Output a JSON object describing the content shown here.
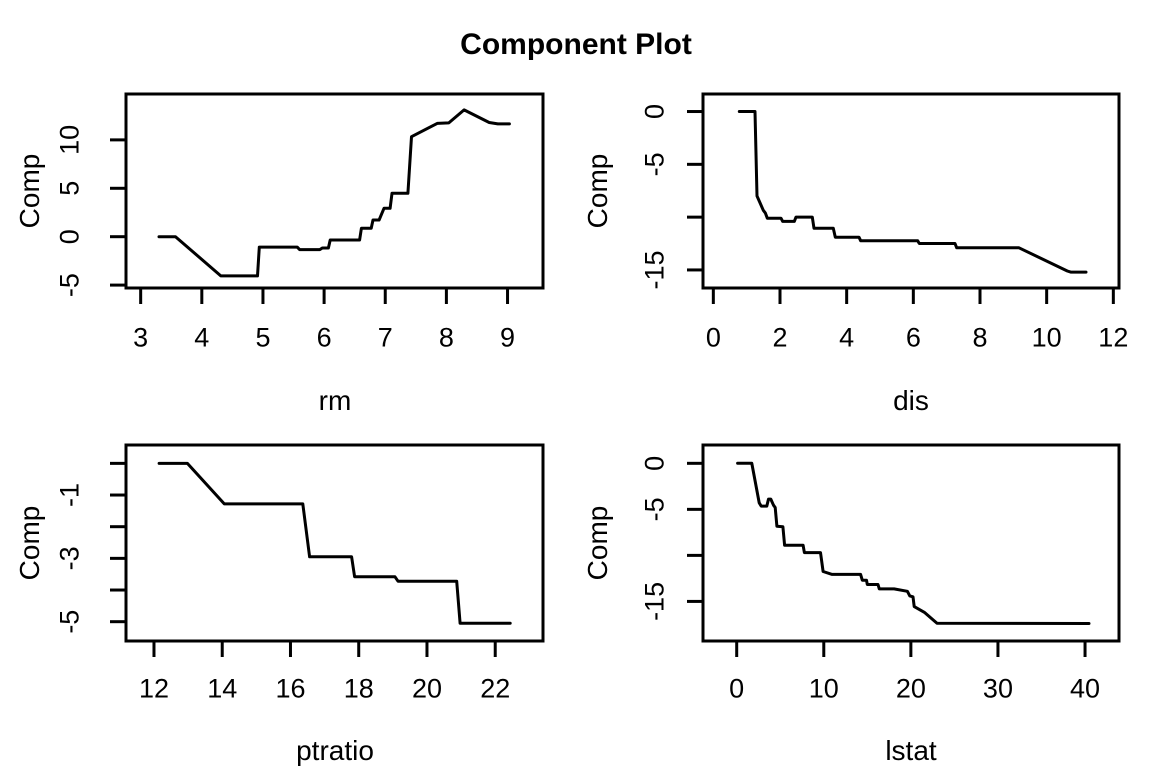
{
  "title": "Component Plot",
  "colors": {
    "line": "#000000",
    "text": "#000000",
    "background": "#ffffff"
  },
  "chart_data": [
    {
      "type": "line",
      "panel": "top-left",
      "xlabel": "rm",
      "ylabel": "Comp",
      "xlim": [
        2.76,
        9.58
      ],
      "ylim": [
        -5.3,
        14.74
      ],
      "x_tick_values": [
        3,
        4,
        5,
        6,
        7,
        8,
        9
      ],
      "x_tick_labels": [
        "3",
        "4",
        "5",
        "6",
        "7",
        "8",
        "9"
      ],
      "y_tick_values": [
        -5,
        0,
        5,
        10
      ],
      "y_tick_labels": [
        "-5",
        "0",
        "5",
        "10"
      ],
      "grid": false,
      "points": [
        [
          3.3,
          0
        ],
        [
          3.57,
          0
        ],
        [
          4.31,
          -4.05
        ],
        [
          4.91,
          -4.05
        ],
        [
          4.94,
          -1.07
        ],
        [
          5.56,
          -1.07
        ],
        [
          5.6,
          -1.33
        ],
        [
          5.93,
          -1.33
        ],
        [
          5.97,
          -1.17
        ],
        [
          6.07,
          -1.17
        ],
        [
          6.1,
          -0.34
        ],
        [
          6.58,
          -0.34
        ],
        [
          6.61,
          0.87
        ],
        [
          6.77,
          0.87
        ],
        [
          6.8,
          1.72
        ],
        [
          6.9,
          1.72
        ],
        [
          6.98,
          2.93
        ],
        [
          7.08,
          2.93
        ],
        [
          7.11,
          4.48
        ],
        [
          7.37,
          4.48
        ],
        [
          7.43,
          10.33
        ],
        [
          7.85,
          11.7
        ],
        [
          8.04,
          11.75
        ],
        [
          8.29,
          13.1
        ],
        [
          8.7,
          11.8
        ],
        [
          8.84,
          11.65
        ],
        [
          9.03,
          11.65
        ]
      ]
    },
    {
      "type": "line",
      "panel": "top-right",
      "xlabel": "dis",
      "ylabel": "Comp",
      "xlim": [
        -0.31,
        12.17
      ],
      "ylim": [
        -16.71,
        1.66
      ],
      "x_tick_values": [
        0,
        2,
        4,
        6,
        8,
        10,
        12
      ],
      "x_tick_labels": [
        "0",
        "2",
        "4",
        "6",
        "8",
        "10",
        "12"
      ],
      "y_tick_values": [
        0,
        -5,
        -10,
        -15
      ],
      "y_tick_labels": [
        "0",
        "-5",
        "",
        "-15"
      ],
      "grid": false,
      "points": [
        [
          0.78,
          0
        ],
        [
          1.25,
          0
        ],
        [
          1.31,
          -8.0
        ],
        [
          1.5,
          -9.35
        ],
        [
          1.56,
          -9.6
        ],
        [
          1.62,
          -10.1
        ],
        [
          2.03,
          -10.1
        ],
        [
          2.08,
          -10.4
        ],
        [
          2.43,
          -10.4
        ],
        [
          2.48,
          -10.0
        ],
        [
          2.97,
          -10.0
        ],
        [
          3.02,
          -11.06
        ],
        [
          3.6,
          -11.06
        ],
        [
          3.66,
          -11.9
        ],
        [
          4.37,
          -11.9
        ],
        [
          4.42,
          -12.24
        ],
        [
          6.13,
          -12.24
        ],
        [
          6.18,
          -12.5
        ],
        [
          7.25,
          -12.5
        ],
        [
          7.3,
          -12.9
        ],
        [
          9.17,
          -12.9
        ],
        [
          10.62,
          -15.1
        ],
        [
          10.72,
          -15.2
        ],
        [
          11.18,
          -15.2
        ]
      ]
    },
    {
      "type": "line",
      "panel": "bottom-left",
      "xlabel": "ptratio",
      "ylabel": "Comp",
      "xlim": [
        11.18,
        23.4
      ],
      "ylim": [
        -5.61,
        0.58
      ],
      "x_tick_values": [
        12,
        14,
        16,
        18,
        20,
        22
      ],
      "x_tick_labels": [
        "12",
        "14",
        "16",
        "18",
        "20",
        "22"
      ],
      "y_tick_values": [
        0,
        -1,
        -2,
        -3,
        -4,
        -5
      ],
      "y_tick_labels": [
        "",
        "-1",
        "",
        "-3",
        "",
        "-5"
      ],
      "grid": false,
      "points": [
        [
          12.15,
          0.0
        ],
        [
          12.98,
          0.0
        ],
        [
          14.06,
          -1.28
        ],
        [
          16.36,
          -1.28
        ],
        [
          16.56,
          -2.95
        ],
        [
          17.79,
          -2.95
        ],
        [
          17.88,
          -3.58
        ],
        [
          19.06,
          -3.58
        ],
        [
          19.15,
          -3.72
        ],
        [
          20.87,
          -3.72
        ],
        [
          20.97,
          -5.05
        ],
        [
          22.44,
          -5.05
        ]
      ]
    },
    {
      "type": "line",
      "panel": "bottom-right",
      "xlabel": "lstat",
      "ylabel": "Comp",
      "xlim": [
        -3.87,
        43.9
      ],
      "ylim": [
        -19.3,
        1.99
      ],
      "x_tick_values": [
        0,
        10,
        20,
        30,
        40
      ],
      "x_tick_labels": [
        "0",
        "10",
        "20",
        "30",
        "40"
      ],
      "y_tick_values": [
        0,
        -5,
        -10,
        -15
      ],
      "y_tick_labels": [
        "0",
        "-5",
        "",
        "-15"
      ],
      "grid": false,
      "points": [
        [
          0.1,
          0
        ],
        [
          1.73,
          0
        ],
        [
          2.58,
          -4.29
        ],
        [
          2.81,
          -4.65
        ],
        [
          3.46,
          -4.65
        ],
        [
          3.65,
          -3.89
        ],
        [
          3.92,
          -3.89
        ],
        [
          4.23,
          -4.55
        ],
        [
          4.42,
          -4.8
        ],
        [
          4.62,
          -6.84
        ],
        [
          5.31,
          -6.9
        ],
        [
          5.5,
          -8.9
        ],
        [
          7.62,
          -8.9
        ],
        [
          7.77,
          -9.7
        ],
        [
          9.62,
          -9.7
        ],
        [
          9.92,
          -11.75
        ],
        [
          10.96,
          -12.07
        ],
        [
          14.23,
          -12.07
        ],
        [
          14.42,
          -12.7
        ],
        [
          14.9,
          -12.7
        ],
        [
          15.0,
          -13.16
        ],
        [
          16.23,
          -13.16
        ],
        [
          16.38,
          -13.64
        ],
        [
          18.08,
          -13.64
        ],
        [
          19.6,
          -13.9
        ],
        [
          19.88,
          -14.4
        ],
        [
          20.25,
          -14.5
        ],
        [
          20.38,
          -15.56
        ],
        [
          21.54,
          -16.18
        ],
        [
          23.0,
          -17.38
        ],
        [
          40.46,
          -17.4
        ]
      ]
    }
  ]
}
